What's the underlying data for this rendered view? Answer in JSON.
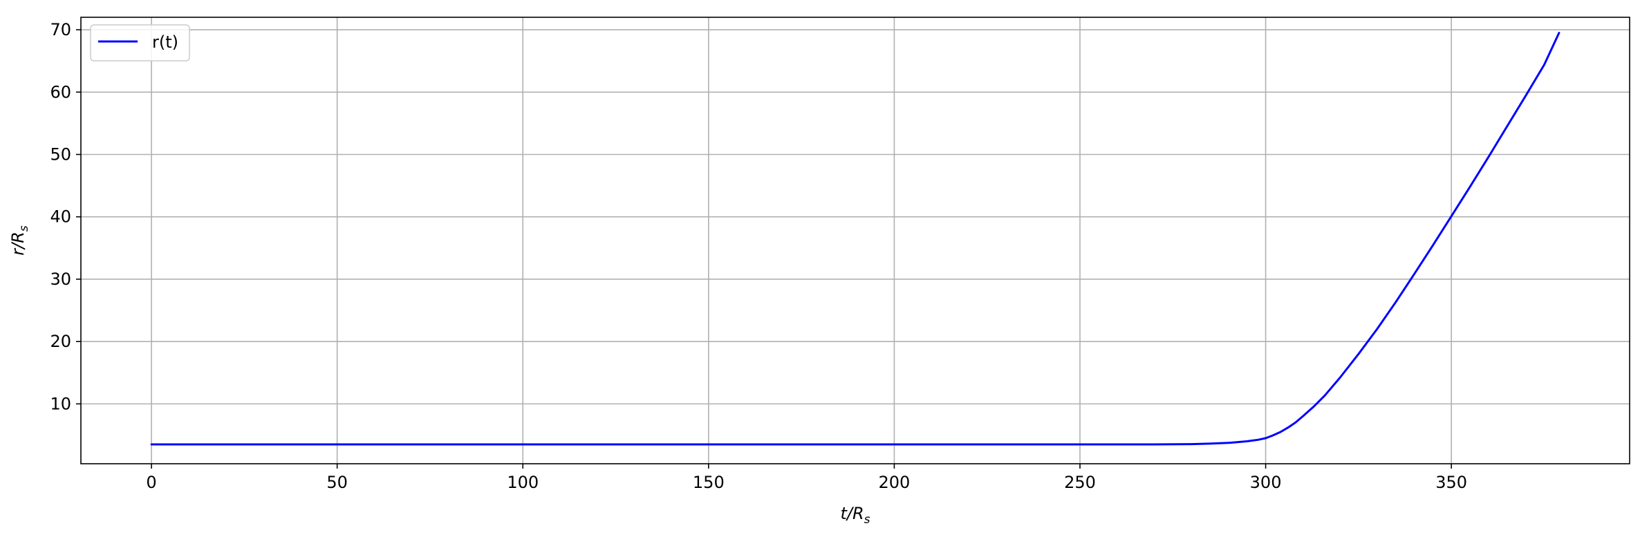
{
  "chart_data": {
    "type": "line",
    "title": "",
    "xlabel": "t/R",
    "xlabel_sub": "s",
    "ylabel": "r/R",
    "ylabel_sub": "s",
    "xlim": [
      -19,
      398
    ],
    "ylim": [
      0.4,
      72
    ],
    "xticks": [
      0,
      50,
      100,
      150,
      200,
      250,
      300,
      350
    ],
    "yticks": [
      10,
      20,
      30,
      40,
      50,
      60,
      70
    ],
    "grid": true,
    "legend_position": "upper left",
    "series": [
      {
        "name": "r(t)",
        "color": "#0000ff",
        "x": [
          0,
          50,
          100,
          150,
          200,
          250,
          270,
          280,
          285,
          290,
          295,
          298,
          300,
          302,
          304,
          306,
          308,
          310,
          313,
          316,
          320,
          325,
          330,
          335,
          340,
          345,
          350,
          355,
          360,
          365,
          370,
          375,
          379
        ],
        "y": [
          3.5,
          3.5,
          3.5,
          3.5,
          3.5,
          3.5,
          3.5,
          3.55,
          3.62,
          3.75,
          4.0,
          4.25,
          4.5,
          4.95,
          5.5,
          6.2,
          7.0,
          8.0,
          9.6,
          11.4,
          14.2,
          18.0,
          22.0,
          26.3,
          30.8,
          35.4,
          40.1,
          44.8,
          49.6,
          54.5,
          59.4,
          64.4,
          69.5
        ]
      }
    ]
  }
}
